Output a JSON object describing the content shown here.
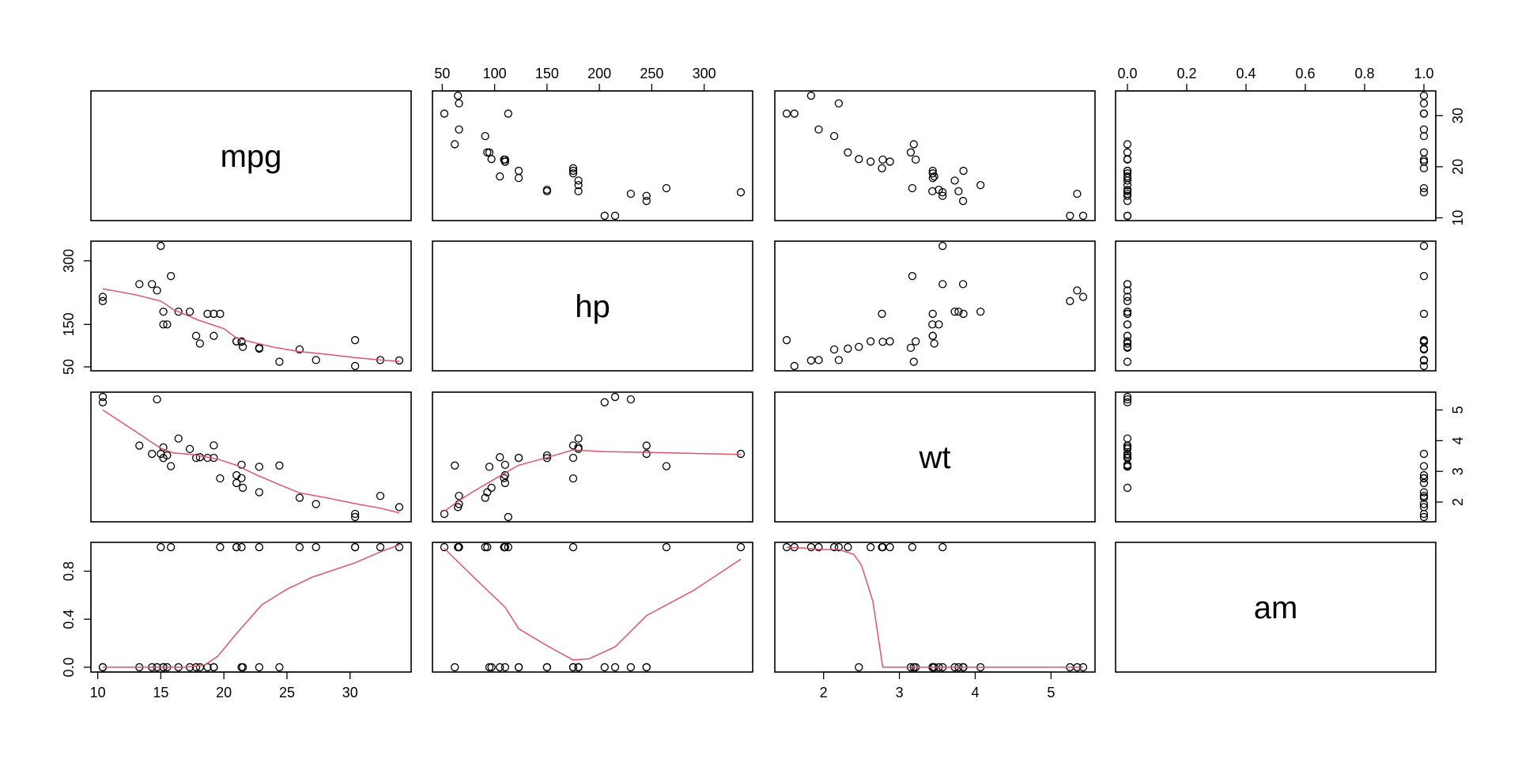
{
  "chart_data": {
    "type": "scatter",
    "variables": [
      "mpg",
      "hp",
      "wt",
      "am"
    ],
    "smoother_color": "#DF536B",
    "point_color": "#000000",
    "ranges": {
      "mpg": [
        10.4,
        33.9
      ],
      "hp": [
        52,
        335
      ],
      "wt": [
        1.513,
        5.424
      ],
      "am": [
        0,
        1
      ]
    },
    "ticks": {
      "mpg": [
        10,
        15,
        20,
        25,
        30
      ],
      "hp": [
        50,
        100,
        150,
        200,
        250,
        300
      ],
      "hp_left": [
        50,
        150,
        300
      ],
      "wt": [
        2,
        3,
        4,
        5
      ],
      "am": [
        0.0,
        0.2,
        0.4,
        0.6,
        0.8,
        1.0
      ],
      "am_left": [
        0.0,
        0.4,
        0.8
      ],
      "mpg_right": [
        10,
        20,
        30
      ]
    },
    "tick_labels": {
      "mpg": [
        "10",
        "15",
        "20",
        "25",
        "30"
      ],
      "hp": [
        "50",
        "100",
        "150",
        "200",
        "250",
        "300"
      ],
      "hp_left": [
        "50",
        "150",
        "300"
      ],
      "wt": [
        "2",
        "3",
        "4",
        "5"
      ],
      "am": [
        "0.0",
        "0.2",
        "0.4",
        "0.6",
        "0.8",
        "1.0"
      ],
      "am_left": [
        "0.0",
        "0.4",
        "0.8"
      ],
      "mpg_right": [
        "10",
        "20",
        "30"
      ]
    },
    "data": {
      "mpg": [
        21.0,
        21.0,
        22.8,
        21.4,
        18.7,
        18.1,
        14.3,
        24.4,
        22.8,
        19.2,
        17.8,
        16.4,
        17.3,
        15.2,
        10.4,
        10.4,
        14.7,
        32.4,
        30.4,
        33.9,
        21.5,
        15.5,
        15.2,
        13.3,
        19.2,
        27.3,
        26.0,
        30.4,
        15.8,
        19.7,
        15.0,
        21.4
      ],
      "hp": [
        110,
        110,
        93,
        110,
        175,
        105,
        245,
        62,
        95,
        123,
        123,
        180,
        180,
        180,
        205,
        215,
        230,
        66,
        52,
        65,
        97,
        150,
        150,
        245,
        175,
        66,
        91,
        113,
        264,
        175,
        335,
        109
      ],
      "wt": [
        2.62,
        2.875,
        2.32,
        3.215,
        3.44,
        3.46,
        3.57,
        3.19,
        3.15,
        3.44,
        3.44,
        4.07,
        3.73,
        3.78,
        5.25,
        5.424,
        5.345,
        2.2,
        1.615,
        1.835,
        2.465,
        3.52,
        3.435,
        3.84,
        3.845,
        1.935,
        2.14,
        1.513,
        3.17,
        2.77,
        3.57,
        2.78
      ],
      "am": [
        1,
        1,
        1,
        0,
        0,
        0,
        0,
        0,
        0,
        0,
        0,
        0,
        0,
        0,
        0,
        0,
        0,
        1,
        1,
        1,
        0,
        0,
        0,
        0,
        0,
        1,
        1,
        1,
        1,
        1,
        1,
        1
      ]
    },
    "smoothers": {
      "hp_vs_mpg": {
        "x": [
          10.4,
          13,
          15,
          16,
          18,
          20,
          21,
          22,
          24,
          26,
          28,
          30.4,
          32.4,
          33.9
        ],
        "y": [
          234,
          220,
          205,
          185,
          160,
          140,
          118,
          110,
          96,
          86,
          80,
          72,
          66,
          63
        ]
      },
      "wt_vs_mpg": {
        "x": [
          10.4,
          13,
          15,
          16,
          17.5,
          19.5,
          21,
          22.5,
          24.5,
          26,
          28,
          30.4,
          32.4,
          33.9
        ],
        "y": [
          5.0,
          4.3,
          3.75,
          3.6,
          3.55,
          3.4,
          3.2,
          2.9,
          2.55,
          2.3,
          2.15,
          1.95,
          1.8,
          1.65
        ]
      },
      "wt_vs_hp": {
        "x": [
          52,
          66,
          80,
          95,
          110,
          123,
          150,
          175,
          205,
          245,
          335
        ],
        "y": [
          1.7,
          2.05,
          2.35,
          2.65,
          2.95,
          3.2,
          3.45,
          3.7,
          3.64,
          3.62,
          3.55
        ]
      },
      "am_vs_mpg": {
        "x": [
          10.4,
          13,
          15,
          17,
          18.5,
          19.5,
          21,
          23,
          25,
          27,
          30.4,
          32.4,
          33.9
        ],
        "y": [
          0.0,
          0.0,
          0.0,
          0.0,
          0.02,
          0.09,
          0.28,
          0.52,
          0.65,
          0.75,
          0.87,
          0.96,
          1.02
        ]
      },
      "am_vs_hp": {
        "x": [
          52,
          80,
          110,
          123,
          150,
          175,
          190,
          215,
          245,
          290,
          335
        ],
        "y": [
          0.99,
          0.75,
          0.5,
          0.32,
          0.18,
          0.06,
          0.07,
          0.17,
          0.43,
          0.64,
          0.9
        ]
      },
      "am_vs_wt": {
        "x": [
          1.513,
          1.8,
          2.0,
          2.2,
          2.4,
          2.5,
          2.65,
          2.78,
          3.0,
          3.5,
          4.0,
          4.5,
          5.0,
          5.424
        ],
        "y": [
          1.0,
          0.99,
          0.98,
          0.98,
          0.94,
          0.85,
          0.55,
          0.0,
          0.0,
          0.0,
          0.0,
          0.0,
          0.0,
          0.0
        ]
      }
    }
  }
}
